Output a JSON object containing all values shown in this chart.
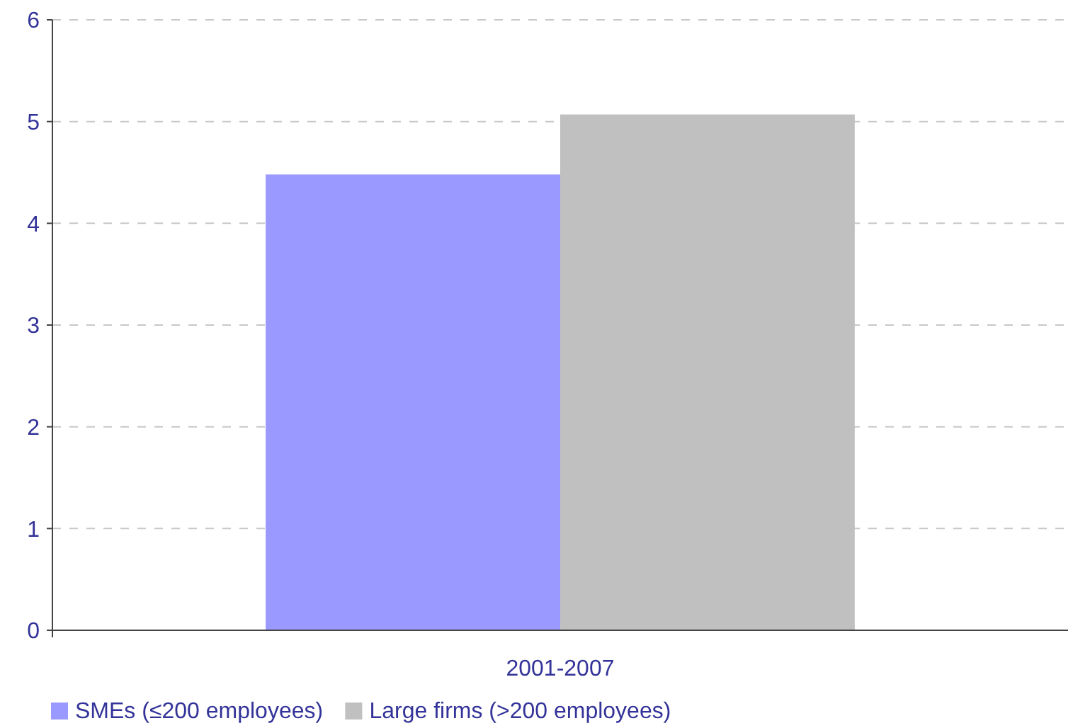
{
  "chart_data": {
    "type": "bar",
    "categories": [
      "2001-2007"
    ],
    "series": [
      {
        "name": "SMEs (≤200 employees)",
        "color": "#9999ff",
        "values": [
          4.48
        ]
      },
      {
        "name": "Large firms (>200 employees)",
        "color": "#c0c0c0",
        "values": [
          5.07
        ]
      }
    ],
    "ylim": [
      0,
      6
    ],
    "yticks": [
      0,
      1,
      2,
      3,
      4,
      5,
      6
    ],
    "grid": "y",
    "legend": "bottom left"
  }
}
